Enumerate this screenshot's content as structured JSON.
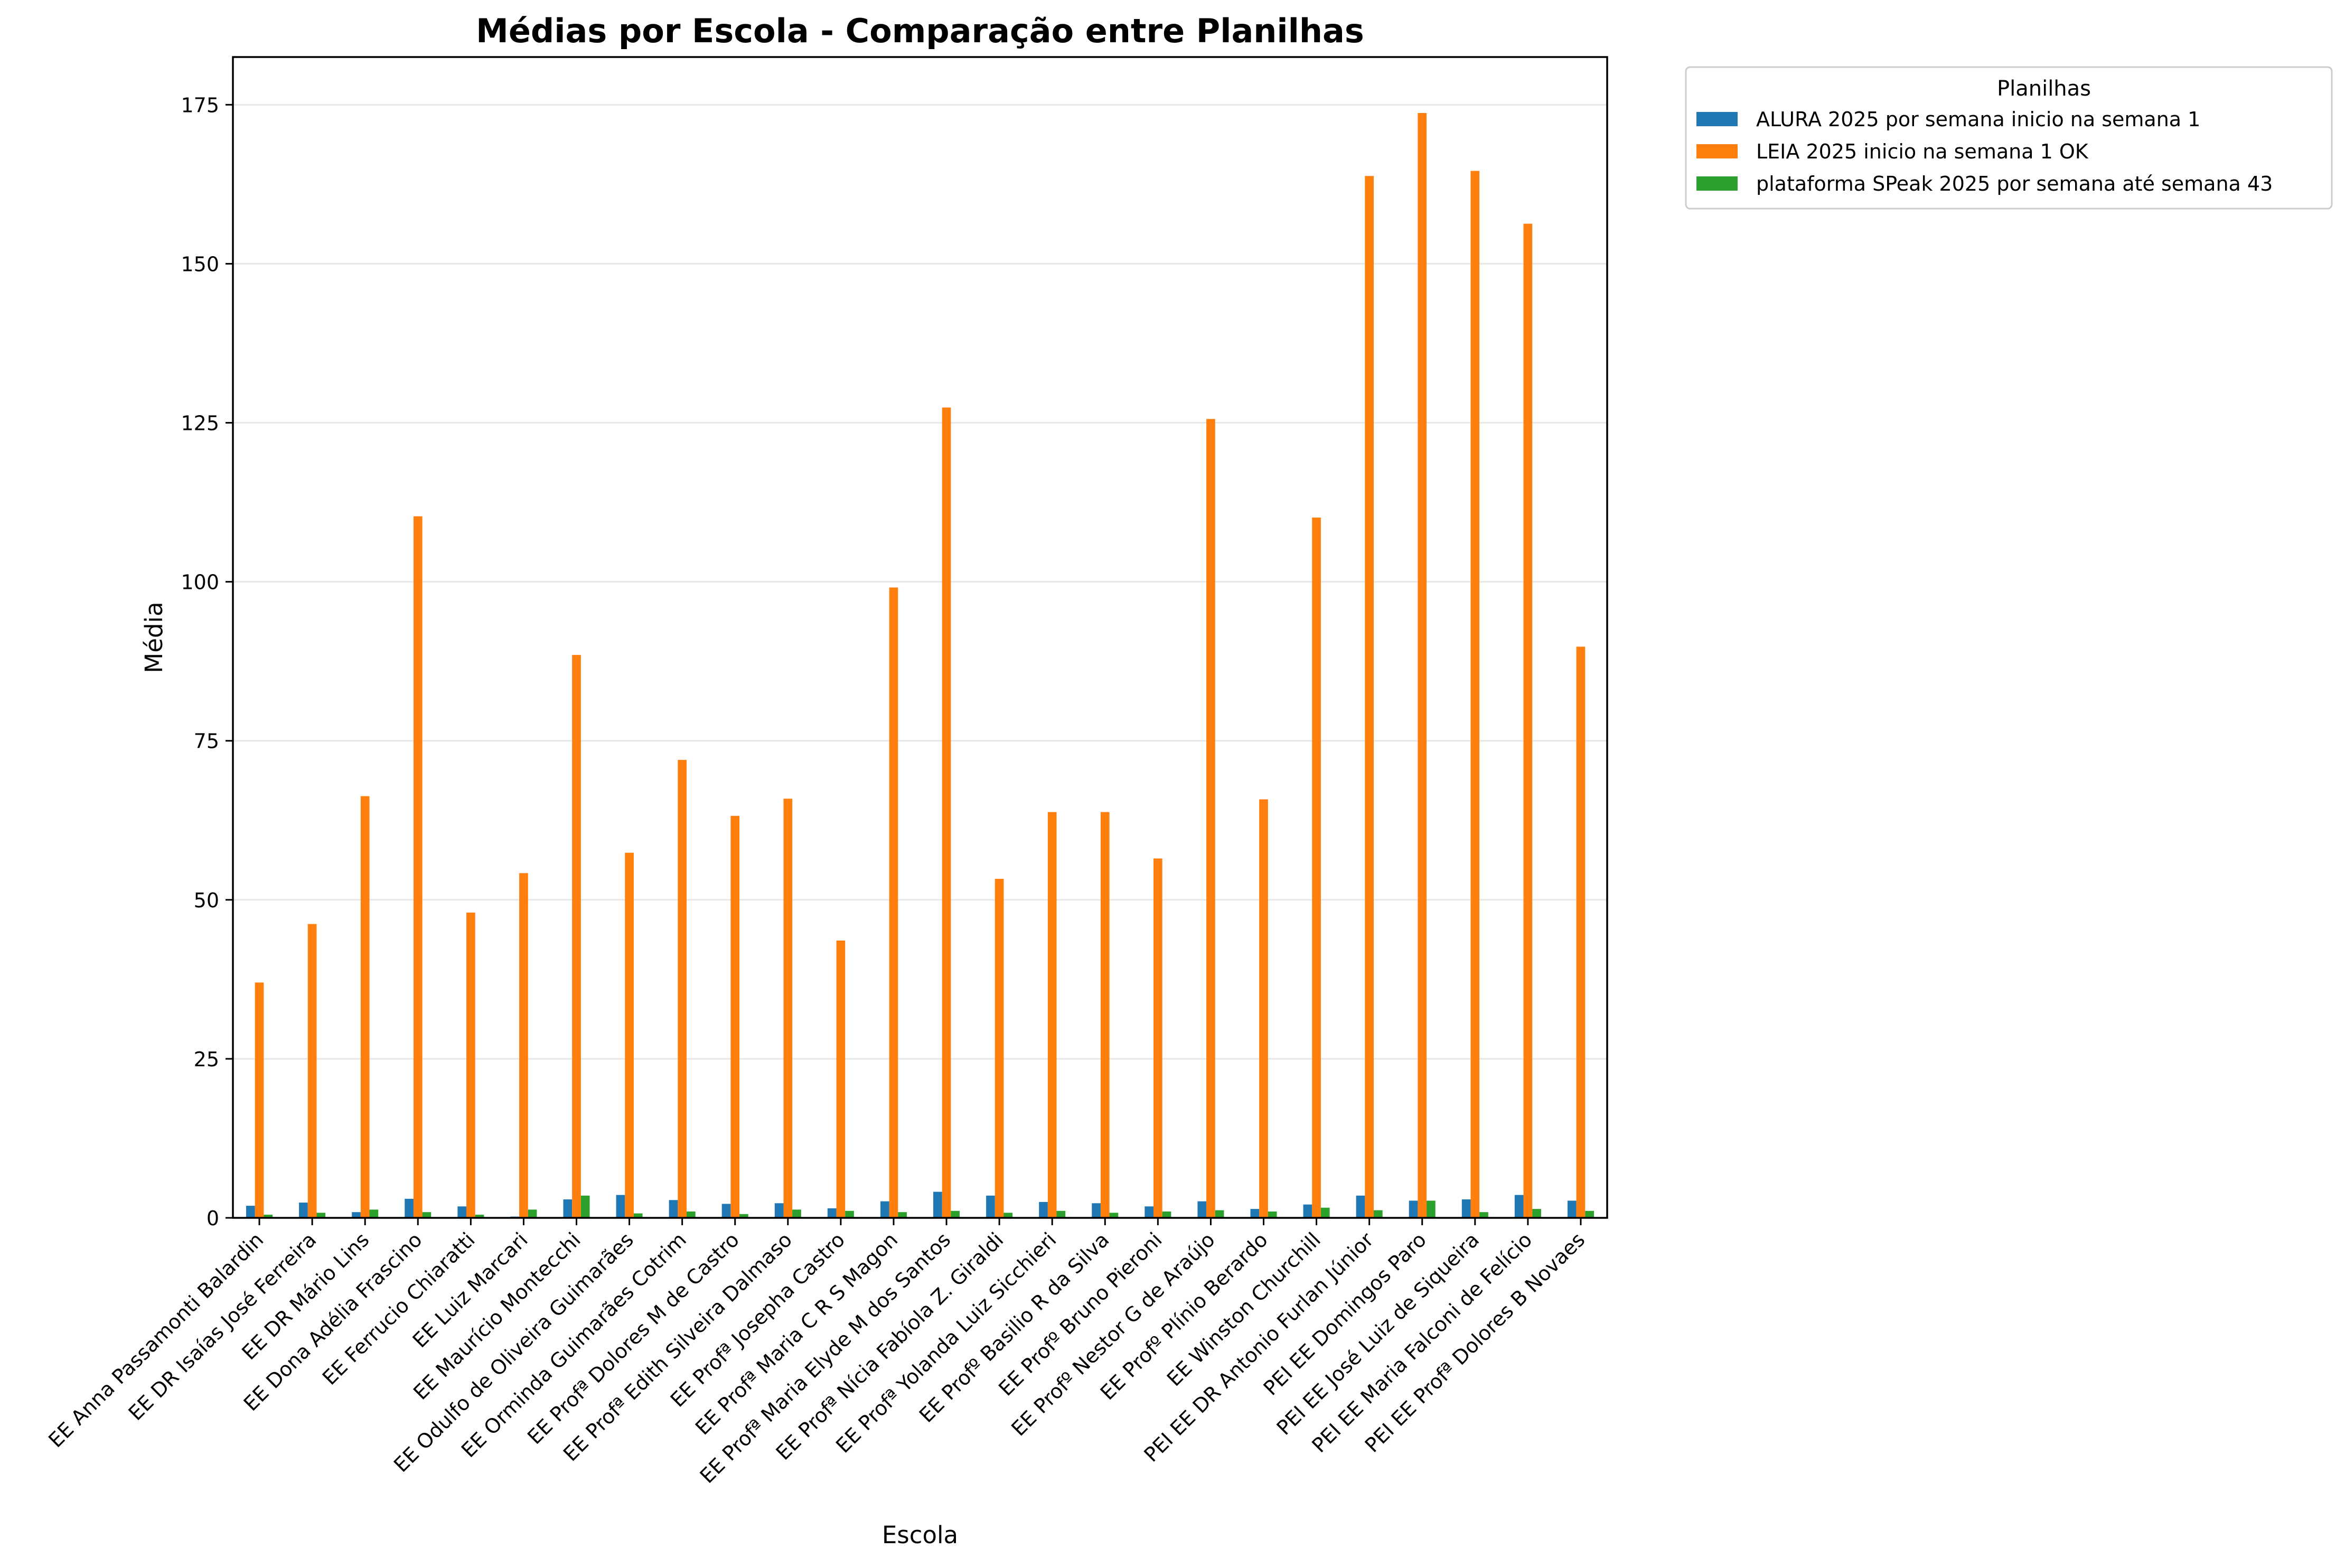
{
  "chart_data": {
    "type": "bar",
    "title": "Médias por Escola - Comparação entre Planilhas",
    "xlabel": "Escola",
    "ylabel": "Média",
    "ylim": [
      0,
      182.5
    ],
    "yticks": [
      0,
      25,
      50,
      75,
      100,
      125,
      150,
      175
    ],
    "grid": "y",
    "legend": {
      "title": "Planilhas",
      "placement": "outside top-right"
    },
    "categories": [
      "EE Anna Passamonti Balardin",
      "EE DR Isaías José Ferreira",
      "EE DR Mário Lins",
      "EE Dona Adélia Frascino",
      "EE Ferrucio Chiaratti",
      "EE Luiz Marcari",
      "EE Maurício Montecchi",
      "EE Odulfo de Oliveira Guimarães",
      "EE Orminda Guimarães Cotrim",
      "EE Profª Dolores M de Castro",
      "EE Profª Edith Silveira Dalmaso",
      "EE Profª Josepha Castro",
      "EE Profª Maria C R S Magon",
      "EE Profª Maria Elyde M dos Santos",
      "EE Profª Nícia Fabíola Z. Giraldi",
      "EE Profª Yolanda Luiz Sicchieri",
      "EE Profº Basilio R da Silva",
      "EE Profº Bruno Pieroni",
      "EE Profº Nestor G de Araújo",
      "EE Profº Plínio Berardo",
      "EE Winston Churchill",
      "PEI EE DR Antonio Furlan Júnior",
      "PEI EE Domingos Paro",
      "PEI EE José Luiz de Siqueira",
      "PEI EE Maria Falconi de Felício",
      "PEI EE Profª Dolores B Novaes"
    ],
    "series": [
      {
        "name": "ALURA 2025  por semana inicio na semana 1",
        "color": "#1f77b4",
        "values": [
          1.9,
          2.4,
          0.9,
          3.0,
          1.8,
          0.2,
          2.9,
          3.6,
          2.8,
          2.2,
          2.3,
          1.5,
          2.6,
          4.1,
          3.5,
          2.5,
          2.3,
          1.8,
          2.6,
          1.4,
          2.1,
          3.5,
          2.7,
          2.9,
          3.6,
          2.7
        ]
      },
      {
        "name": "LEIA 2025 inicio na semana 1  OK",
        "color": "#ff7f0e",
        "values": [
          37.0,
          46.2,
          66.3,
          110.3,
          48.0,
          54.2,
          88.5,
          57.4,
          72.0,
          63.2,
          65.9,
          43.6,
          99.1,
          127.4,
          53.3,
          63.8,
          63.8,
          56.5,
          125.6,
          65.8,
          110.1,
          163.8,
          173.7,
          164.6,
          156.3,
          89.8
        ]
      },
      {
        "name": "plataforma SPeak 2025 por semana até semana 43",
        "color": "#2ca02c",
        "values": [
          0.5,
          0.8,
          1.3,
          0.9,
          0.5,
          1.3,
          3.5,
          0.7,
          1.0,
          0.6,
          1.3,
          1.1,
          0.9,
          1.1,
          0.8,
          1.1,
          0.8,
          1.0,
          1.2,
          1.0,
          1.6,
          1.2,
          2.7,
          0.9,
          1.4,
          1.1
        ]
      }
    ]
  }
}
